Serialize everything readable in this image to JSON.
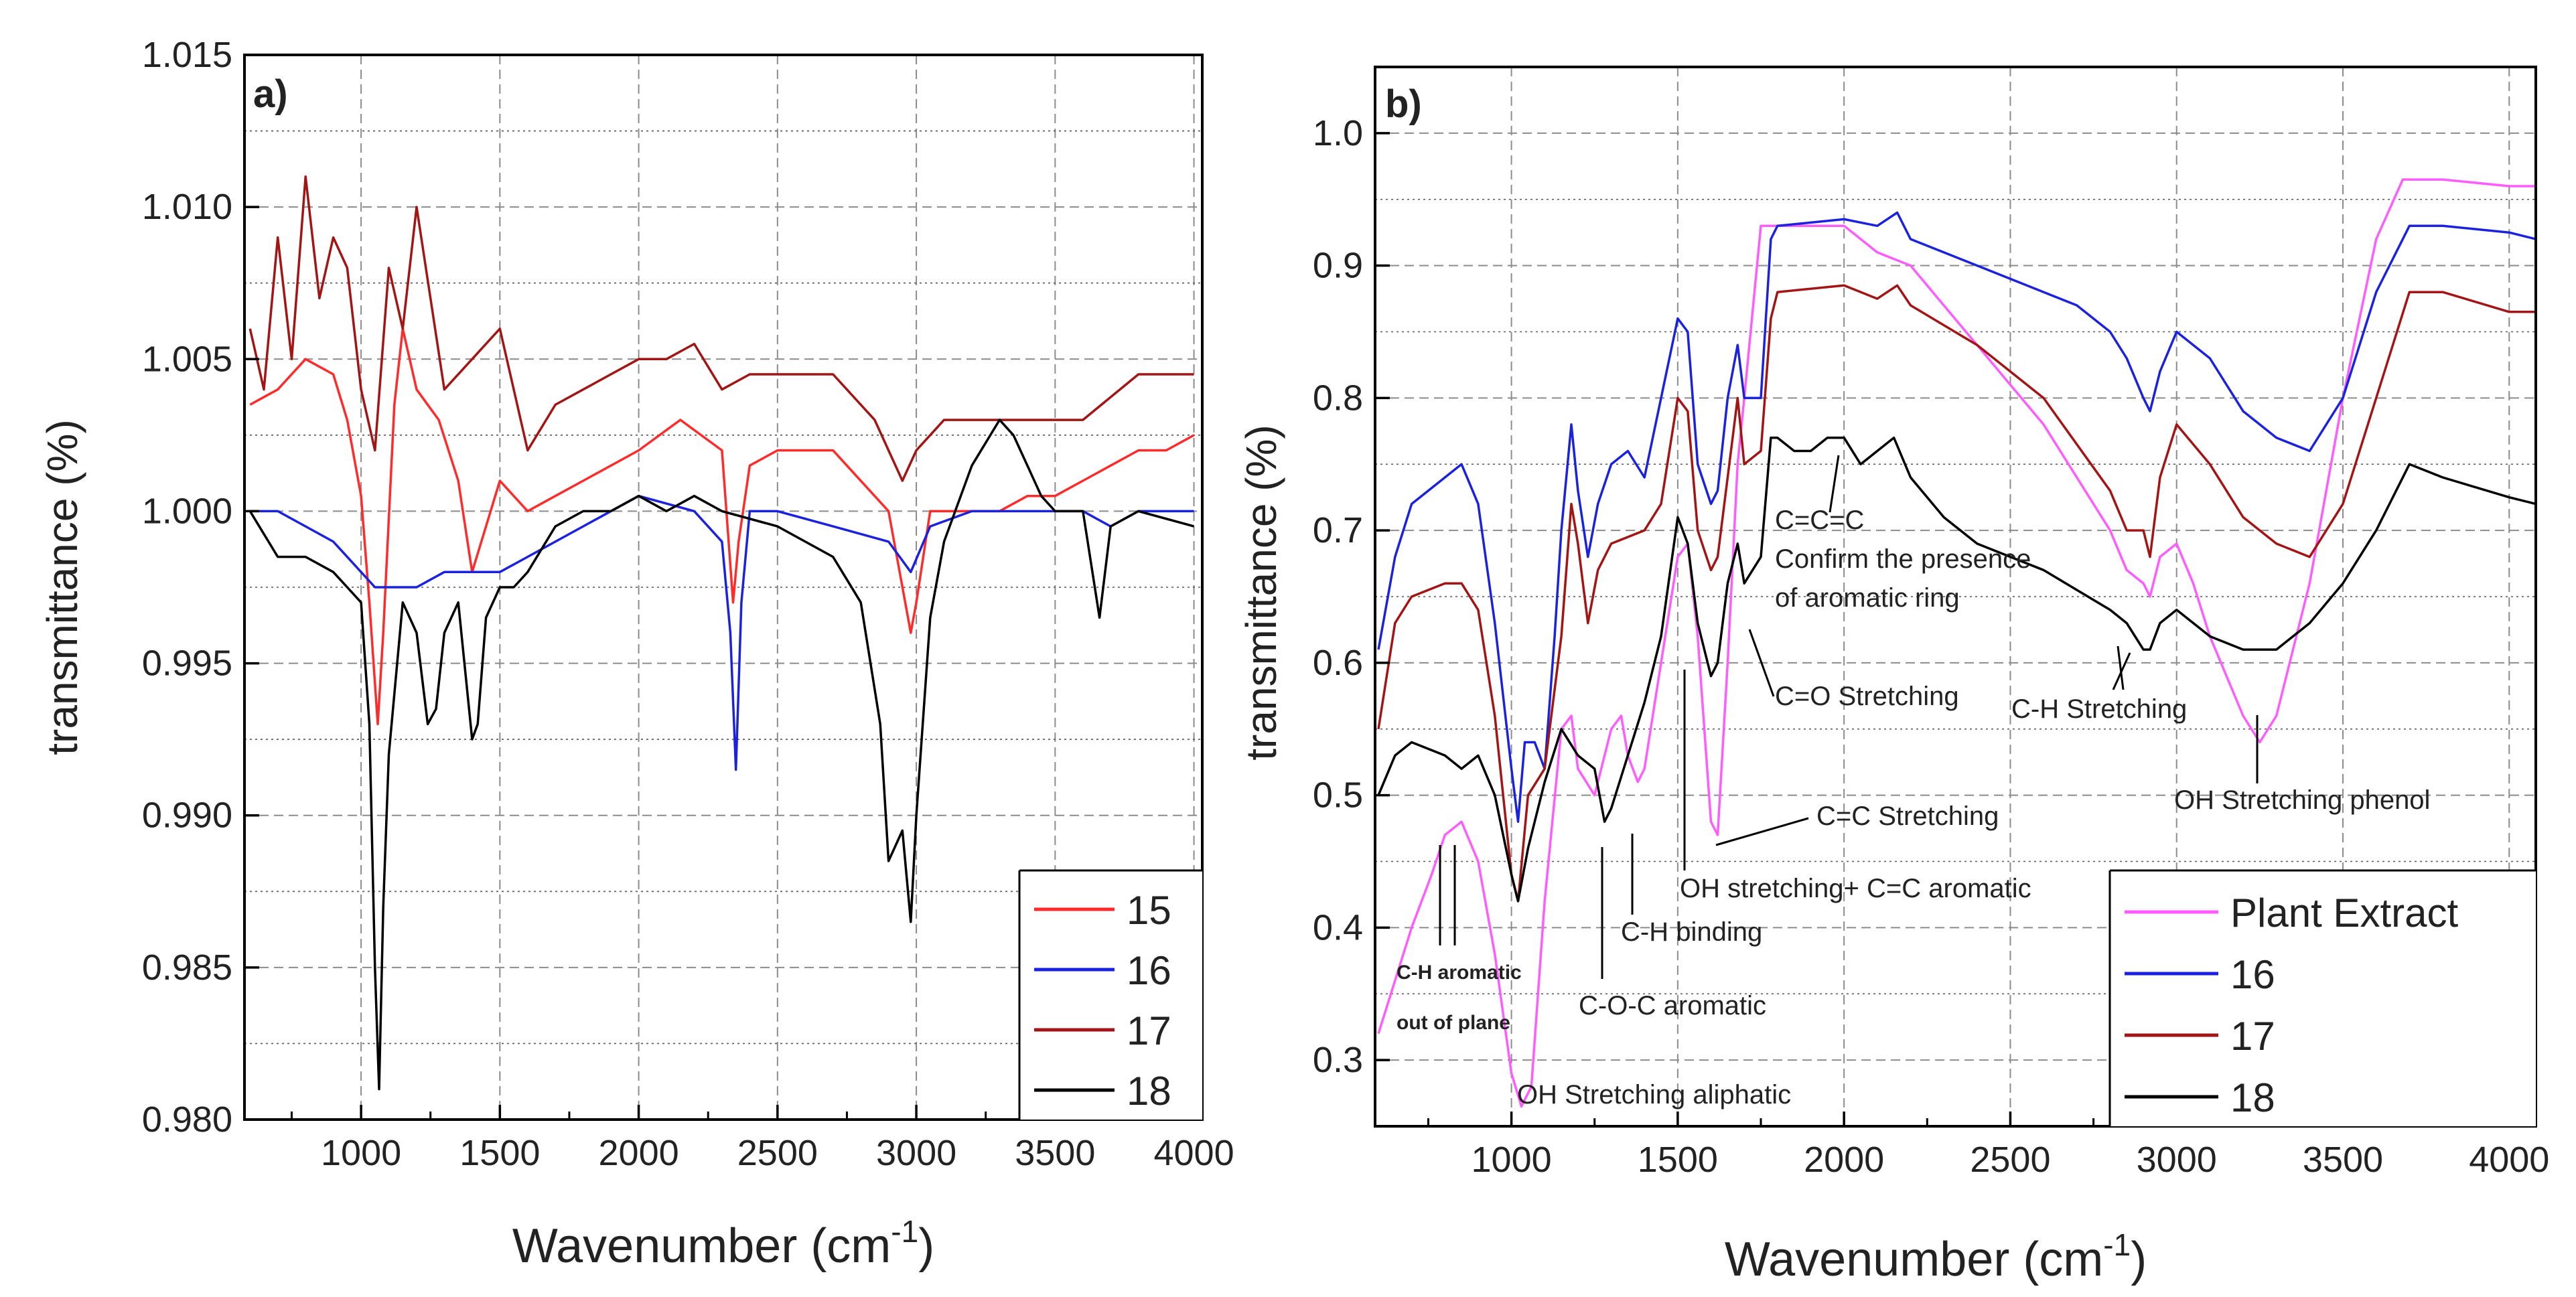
{
  "chart_data": [
    {
      "panel_label": "a)",
      "type": "line",
      "xlabel_main": "Wavenumber (cm",
      "xlabel_sup": "-1",
      "xlabel_close": ")",
      "ylabel": "transmittance (%)",
      "xlim": [
        580,
        4030
      ],
      "ylim": [
        0.98,
        1.015
      ],
      "x_ticks": [
        1000,
        1500,
        2000,
        2500,
        3000,
        3500,
        4000
      ],
      "x_tick_labels": [
        "1000",
        "1500",
        "2000",
        "2500",
        "3000",
        "3500",
        "4000"
      ],
      "y_ticks": [
        0.98,
        0.985,
        0.99,
        0.995,
        1.0,
        1.005,
        1.01,
        1.015
      ],
      "y_tick_labels": [
        "0.980",
        "0.985",
        "0.990",
        "0.995",
        "1.000",
        "1.005",
        "1.010",
        "1.015"
      ],
      "grid": true,
      "legend_placement": "bottom-right",
      "series": [
        {
          "name": "15",
          "color": "#ff2a2a",
          "x": [
            600,
            700,
            800,
            900,
            950,
            1000,
            1030,
            1060,
            1080,
            1120,
            1150,
            1200,
            1280,
            1350,
            1400,
            1500,
            1600,
            1700,
            1800,
            2000,
            2150,
            2300,
            2340,
            2360,
            2400,
            2500,
            2700,
            2900,
            2980,
            3000,
            3050,
            3100,
            3200,
            3300,
            3400,
            3500,
            3600,
            3700,
            3800,
            3900,
            4000
          ],
          "y": [
            1.0035,
            1.004,
            1.005,
            1.0045,
            1.003,
            1.0005,
            0.997,
            0.993,
            0.996,
            1.0035,
            1.006,
            1.004,
            1.003,
            1.001,
            0.998,
            1.001,
            1.0,
            1.0005,
            1.001,
            1.002,
            1.003,
            1.002,
            0.997,
            0.999,
            1.0015,
            1.002,
            1.002,
            1.0,
            0.996,
            0.997,
            1.0,
            1.0,
            1.0,
            1.0,
            1.0005,
            1.0005,
            1.001,
            1.0015,
            1.002,
            1.002,
            1.0025
          ]
        },
        {
          "name": "16",
          "color": "#1a22e0",
          "x": [
            600,
            700,
            800,
            900,
            1000,
            1050,
            1100,
            1200,
            1300,
            1400,
            1500,
            1600,
            1700,
            1800,
            2000,
            2200,
            2300,
            2330,
            2350,
            2370,
            2400,
            2500,
            2700,
            2900,
            2980,
            3050,
            3200,
            3400,
            3600,
            3700,
            3800,
            4000
          ],
          "y": [
            1.0,
            1.0,
            0.9995,
            0.999,
            0.998,
            0.9975,
            0.9975,
            0.9975,
            0.998,
            0.998,
            0.998,
            0.9985,
            0.999,
            0.9995,
            1.0005,
            1.0,
            0.999,
            0.996,
            0.9915,
            0.997,
            1.0,
            1.0,
            0.9995,
            0.999,
            0.998,
            0.9995,
            1.0,
            1.0,
            1.0,
            0.9995,
            1.0,
            1.0
          ]
        },
        {
          "name": "17",
          "color": "#a31414",
          "x": [
            600,
            650,
            700,
            750,
            800,
            850,
            900,
            950,
            1000,
            1050,
            1100,
            1150,
            1200,
            1300,
            1400,
            1500,
            1600,
            1700,
            1800,
            1900,
            2000,
            2100,
            2200,
            2300,
            2400,
            2500,
            2700,
            2850,
            2950,
            3000,
            3100,
            3200,
            3400,
            3600,
            3800,
            4000
          ],
          "y": [
            1.006,
            1.004,
            1.009,
            1.005,
            1.011,
            1.007,
            1.009,
            1.008,
            1.004,
            1.002,
            1.008,
            1.006,
            1.01,
            1.004,
            1.005,
            1.006,
            1.002,
            1.0035,
            1.004,
            1.0045,
            1.005,
            1.005,
            1.0055,
            1.004,
            1.0045,
            1.0045,
            1.0045,
            1.003,
            1.001,
            1.002,
            1.003,
            1.003,
            1.003,
            1.003,
            1.0045,
            1.0045
          ]
        },
        {
          "name": "18",
          "color": "#000000",
          "x": [
            600,
            700,
            800,
            900,
            950,
            1000,
            1030,
            1050,
            1065,
            1080,
            1100,
            1150,
            1200,
            1240,
            1270,
            1300,
            1350,
            1400,
            1420,
            1450,
            1500,
            1550,
            1600,
            1700,
            1800,
            1900,
            2000,
            2100,
            2200,
            2300,
            2500,
            2700,
            2800,
            2870,
            2900,
            2950,
            2980,
            3000,
            3050,
            3100,
            3200,
            3300,
            3350,
            3400,
            3450,
            3500,
            3600,
            3660,
            3700,
            3800,
            4000
          ],
          "y": [
            1.0,
            0.9985,
            0.9985,
            0.998,
            0.9975,
            0.997,
            0.993,
            0.985,
            0.981,
            0.987,
            0.992,
            0.997,
            0.996,
            0.993,
            0.9935,
            0.996,
            0.997,
            0.9925,
            0.993,
            0.9965,
            0.9975,
            0.9975,
            0.998,
            0.9995,
            1.0,
            1.0,
            1.0005,
            1.0,
            1.0005,
            1.0,
            0.9995,
            0.9985,
            0.997,
            0.993,
            0.9885,
            0.9895,
            0.9865,
            0.99,
            0.9965,
            0.999,
            1.0015,
            1.003,
            1.0025,
            1.0015,
            1.0005,
            1.0,
            1.0,
            0.9965,
            0.9995,
            1.0,
            0.9995
          ]
        }
      ]
    },
    {
      "panel_label": "b)",
      "type": "line",
      "xlabel_main": "Wavenumber (cm",
      "xlabel_sup": "-1",
      "xlabel_close": ")",
      "ylabel": "transmittance (%)",
      "xlim": [
        590,
        4080
      ],
      "ylim": [
        0.25,
        1.05
      ],
      "x_ticks": [
        1000,
        1500,
        2000,
        2500,
        3000,
        3500,
        4000
      ],
      "x_tick_labels": [
        "1000",
        "1500",
        "2000",
        "2500",
        "3000",
        "3500",
        "4000"
      ],
      "y_ticks": [
        0.3,
        0.4,
        0.5,
        0.6,
        0.7,
        0.8,
        0.9,
        1.0
      ],
      "y_tick_labels": [
        "0.3",
        "0.4",
        "0.5",
        "0.6",
        "0.7",
        "0.8",
        "0.9",
        "1.0"
      ],
      "grid": true,
      "legend_placement": "bottom-right",
      "series": [
        {
          "name": "Plant Extract",
          "color": "#ff5cff",
          "x": [
            600,
            700,
            760,
            800,
            850,
            900,
            950,
            1000,
            1030,
            1060,
            1100,
            1150,
            1180,
            1200,
            1250,
            1300,
            1330,
            1350,
            1380,
            1400,
            1450,
            1500,
            1530,
            1560,
            1600,
            1620,
            1650,
            1680,
            1700,
            1750,
            1800,
            2000,
            2100,
            2200,
            2300,
            2400,
            2500,
            2600,
            2700,
            2800,
            2850,
            2900,
            2920,
            2950,
            3000,
            3050,
            3100,
            3200,
            3250,
            3300,
            3400,
            3500,
            3600,
            3680,
            3800,
            4000,
            4080
          ],
          "y": [
            0.32,
            0.4,
            0.44,
            0.47,
            0.48,
            0.45,
            0.38,
            0.29,
            0.265,
            0.28,
            0.42,
            0.55,
            0.56,
            0.52,
            0.5,
            0.55,
            0.56,
            0.53,
            0.51,
            0.52,
            0.6,
            0.68,
            0.69,
            0.62,
            0.48,
            0.47,
            0.6,
            0.75,
            0.8,
            0.93,
            0.93,
            0.93,
            0.91,
            0.9,
            0.87,
            0.84,
            0.81,
            0.78,
            0.74,
            0.7,
            0.67,
            0.66,
            0.65,
            0.68,
            0.69,
            0.66,
            0.62,
            0.56,
            0.54,
            0.56,
            0.66,
            0.8,
            0.92,
            0.965,
            0.965,
            0.96,
            0.96
          ]
        },
        {
          "name": "16",
          "color": "#1a22e0",
          "x": [
            600,
            650,
            700,
            800,
            850,
            900,
            950,
            1000,
            1020,
            1040,
            1070,
            1100,
            1130,
            1150,
            1180,
            1200,
            1230,
            1260,
            1300,
            1350,
            1400,
            1450,
            1500,
            1530,
            1560,
            1600,
            1620,
            1650,
            1680,
            1700,
            1750,
            1780,
            1800,
            2000,
            2100,
            2160,
            2200,
            2400,
            2600,
            2700,
            2800,
            2850,
            2900,
            2920,
            2950,
            3000,
            3100,
            3200,
            3300,
            3400,
            3500,
            3600,
            3700,
            3800,
            4000,
            4080
          ],
          "y": [
            0.61,
            0.68,
            0.72,
            0.74,
            0.75,
            0.72,
            0.63,
            0.52,
            0.48,
            0.54,
            0.54,
            0.52,
            0.62,
            0.7,
            0.78,
            0.73,
            0.68,
            0.72,
            0.75,
            0.76,
            0.74,
            0.8,
            0.86,
            0.85,
            0.75,
            0.72,
            0.73,
            0.8,
            0.84,
            0.8,
            0.8,
            0.92,
            0.93,
            0.935,
            0.93,
            0.94,
            0.92,
            0.9,
            0.88,
            0.87,
            0.85,
            0.83,
            0.8,
            0.79,
            0.82,
            0.85,
            0.83,
            0.79,
            0.77,
            0.76,
            0.8,
            0.88,
            0.93,
            0.93,
            0.925,
            0.92
          ]
        },
        {
          "name": "17",
          "color": "#a31414",
          "x": [
            600,
            650,
            700,
            800,
            850,
            900,
            950,
            1000,
            1020,
            1050,
            1100,
            1150,
            1180,
            1200,
            1230,
            1260,
            1300,
            1400,
            1450,
            1500,
            1530,
            1560,
            1600,
            1620,
            1650,
            1680,
            1700,
            1750,
            1780,
            1800,
            2000,
            2100,
            2160,
            2200,
            2400,
            2600,
            2800,
            2850,
            2900,
            2920,
            2950,
            3000,
            3100,
            3200,
            3300,
            3400,
            3500,
            3600,
            3700,
            3800,
            4000,
            4080
          ],
          "y": [
            0.55,
            0.63,
            0.65,
            0.66,
            0.66,
            0.64,
            0.56,
            0.44,
            0.42,
            0.5,
            0.52,
            0.62,
            0.72,
            0.69,
            0.63,
            0.67,
            0.69,
            0.7,
            0.72,
            0.8,
            0.79,
            0.7,
            0.67,
            0.68,
            0.74,
            0.8,
            0.75,
            0.76,
            0.86,
            0.88,
            0.885,
            0.875,
            0.885,
            0.87,
            0.84,
            0.8,
            0.73,
            0.7,
            0.7,
            0.68,
            0.74,
            0.78,
            0.75,
            0.71,
            0.69,
            0.68,
            0.72,
            0.8,
            0.88,
            0.88,
            0.865,
            0.865
          ]
        },
        {
          "name": "18",
          "color": "#000000",
          "x": [
            600,
            650,
            700,
            800,
            850,
            900,
            950,
            1000,
            1020,
            1050,
            1100,
            1150,
            1200,
            1250,
            1280,
            1300,
            1350,
            1400,
            1450,
            1500,
            1530,
            1560,
            1600,
            1620,
            1650,
            1680,
            1700,
            1750,
            1780,
            1800,
            1850,
            1900,
            1950,
            2000,
            2050,
            2100,
            2150,
            2200,
            2300,
            2400,
            2600,
            2800,
            2850,
            2900,
            2920,
            2950,
            3000,
            3100,
            3200,
            3300,
            3400,
            3500,
            3600,
            3700,
            3800,
            4000,
            4080
          ],
          "y": [
            0.5,
            0.53,
            0.54,
            0.53,
            0.52,
            0.53,
            0.5,
            0.44,
            0.42,
            0.46,
            0.51,
            0.55,
            0.53,
            0.52,
            0.48,
            0.49,
            0.53,
            0.57,
            0.62,
            0.71,
            0.69,
            0.63,
            0.59,
            0.6,
            0.66,
            0.69,
            0.66,
            0.68,
            0.77,
            0.77,
            0.76,
            0.76,
            0.77,
            0.77,
            0.75,
            0.76,
            0.77,
            0.74,
            0.71,
            0.69,
            0.67,
            0.64,
            0.63,
            0.61,
            0.61,
            0.63,
            0.64,
            0.62,
            0.61,
            0.61,
            0.63,
            0.66,
            0.7,
            0.75,
            0.74,
            0.725,
            0.72
          ]
        }
      ],
      "annotations": [
        {
          "lines": [
            "C=C=C",
            "Confirm the presence",
            "of aromatic ring"
          ],
          "target_x": 1950,
          "target_y": 0.78
        },
        {
          "lines": [
            "C=O Stretching"
          ],
          "target_x": 1690,
          "target_y": 0.75
        },
        {
          "lines": [
            "C-H Stretching"
          ],
          "target_x": 2850,
          "target_y": 0.62
        },
        {
          "lines": [
            "C=C Stretching"
          ],
          "target_x": 1605,
          "target_y": 0.47
        },
        {
          "lines": [
            "OH Stretching phenol"
          ],
          "target_x": 3250,
          "target_y": 0.55
        },
        {
          "lines": [
            "OH stretching+ C=C aromatic"
          ],
          "target_x": 1520,
          "target_y": 0.68
        },
        {
          "lines": [
            "C-H binding"
          ],
          "target_x": 1350,
          "target_y": 0.53
        },
        {
          "lines": [
            "C-H aromatic",
            "out of plane"
          ],
          "target_x": 790,
          "target_y": 0.46
        },
        {
          "lines": [
            "C-O-C aromatic"
          ],
          "target_x": 1280,
          "target_y": 0.47
        },
        {
          "lines": [
            "OH Stretching aliphatic"
          ],
          "target_x": 1030,
          "target_y": 0.265
        }
      ]
    }
  ]
}
